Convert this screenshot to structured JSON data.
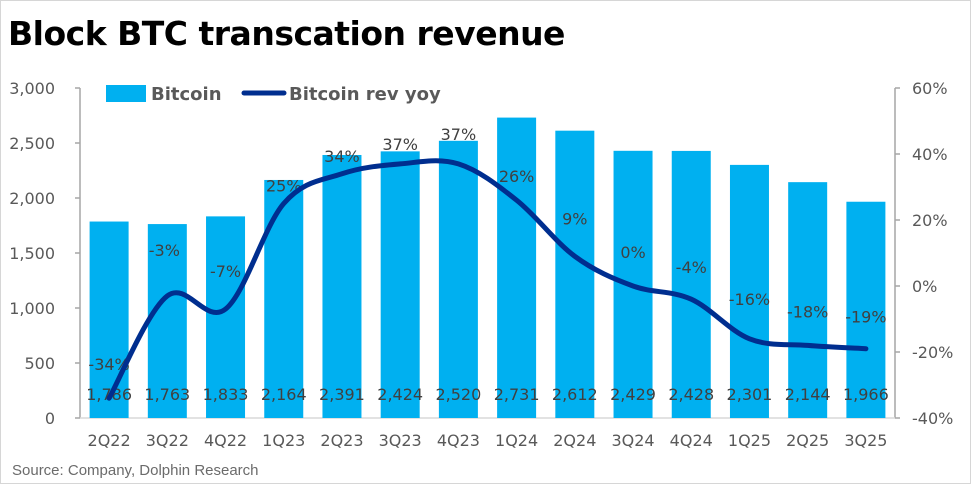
{
  "title": "Block BTC transcation revenue",
  "source": "Source: Company, Dolphin Research",
  "colors": {
    "bar": "#00b0f0",
    "line": "#002e8f",
    "axis": "#a6a6a6"
  },
  "chart_data": {
    "type": "bar",
    "title": "Block BTC transcation revenue",
    "categories": [
      "2Q22",
      "3Q22",
      "4Q22",
      "1Q23",
      "2Q23",
      "3Q23",
      "4Q23",
      "1Q24",
      "2Q24",
      "3Q24",
      "4Q24",
      "1Q25",
      "2Q25",
      "3Q25"
    ],
    "series": [
      {
        "name": "Bitcoin",
        "type": "bar",
        "axis": "left",
        "values": [
          1786,
          1763,
          1833,
          2164,
          2391,
          2424,
          2520,
          2731,
          2612,
          2429,
          2428,
          2301,
          2144,
          1966
        ],
        "labels": [
          "1,786",
          "1,763",
          "1,833",
          "2,164",
          "2,391",
          "2,424",
          "2,520",
          "2,731",
          "2,612",
          "2,429",
          "2,428",
          "2,301",
          "2,144",
          "1,966"
        ]
      },
      {
        "name": "Bitcoin rev yoy",
        "type": "line",
        "axis": "right",
        "values": [
          -34,
          -3,
          -7,
          25,
          34,
          37,
          37,
          26,
          9,
          0,
          -4,
          -16,
          -18,
          -19
        ],
        "labels": [
          "-34%",
          "-3%",
          "-7%",
          "25%",
          "34%",
          "37%",
          "37%",
          "26%",
          "9%",
          "0%",
          "-4%",
          "-16%",
          "-18%",
          "-19%"
        ]
      }
    ],
    "y_left": {
      "min": 0,
      "max": 3000,
      "step": 500,
      "ticks": [
        "0",
        "500",
        "1,000",
        "1,500",
        "2,000",
        "2,500",
        "3,000"
      ]
    },
    "y_right": {
      "min": -40,
      "max": 60,
      "step": 20,
      "ticks": [
        "-40%",
        "-20%",
        "0%",
        "20%",
        "40%",
        "60%"
      ]
    },
    "xlabel": "",
    "ylabel": "",
    "legend": {
      "position": "top-left",
      "entries": [
        "Bitcoin",
        "Bitcoin rev yoy"
      ]
    },
    "grid": false
  }
}
